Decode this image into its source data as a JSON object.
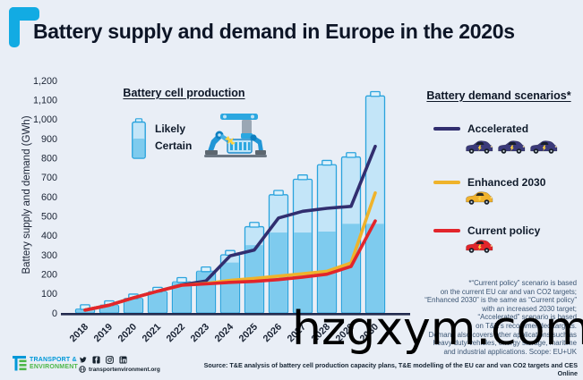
{
  "header": {
    "title": "Battery supply and demand in Europe in the 2020s"
  },
  "y_axis": {
    "title": "Battery supply and demand (GWh)",
    "ticks": [
      "0",
      "100",
      "200",
      "300",
      "400",
      "500",
      "600",
      "700",
      "800",
      "900",
      "1,000",
      "1,100",
      "1,200"
    ]
  },
  "production_legend": {
    "title": "Battery cell production",
    "likely_label": "Likely",
    "certain_label": "Certain"
  },
  "demand_legend": {
    "title": "Battery demand scenarios*",
    "items": [
      {
        "label": "Accelerated",
        "color": "#312e6f",
        "car_color": "#3b3a7a",
        "cars": 3
      },
      {
        "label": "Enhanced 2030",
        "color": "#efb32b",
        "car_color": "#f0b22d",
        "cars": 1
      },
      {
        "label": "Current policy",
        "color": "#e2252b",
        "car_color": "#e2252b",
        "cars": 1
      }
    ]
  },
  "footnote": {
    "lines": [
      "*“Current policy” scenario is based",
      "on the current EU car and van CO2 targets;",
      "“Enhanced 2030” is the same as “Current policy”",
      "with an increased 2030 target;",
      "“Accelerated” scenario is based",
      "on T&E’s recommended targets.",
      "Demand also covers other applications such as",
      "heavy duty vehicles, energy storage, maritime",
      "and industrial applications. Scope: EU+UK"
    ]
  },
  "footer": {
    "brand_line1": "TRANSPORT &",
    "brand_line2": "ENVIRONMENT",
    "handle": "transportenvironment.org",
    "source": "Source: T&E analysis of battery cell production capacity plans, T&E modelling of the EU car and van CO2 targets and CES Online",
    "social_icons": [
      "twitter-icon",
      "facebook-icon",
      "instagram-icon",
      "linkedin-icon"
    ]
  },
  "watermark": "hzgxym.com",
  "colors": {
    "background": "#e9eef6",
    "bar_likely_fill": "#c3e5f8",
    "bar_certain_fill": "#7ecbee",
    "bar_stroke": "#2aa3dd",
    "nub_fill": "#ddf1fb",
    "axis": "#222a4e",
    "accelerated": "#312e6f",
    "enhanced": "#efb32b",
    "current": "#e2252b",
    "brand_blue": "#0098d8",
    "brand_green": "#4cb748"
  },
  "chart_data": {
    "type": "bar",
    "title": "Battery supply and demand in Europe in the 2020s",
    "ylabel": "Battery supply and demand (GWh)",
    "ylim": [
      0,
      1200
    ],
    "grid": false,
    "legend_position": "right",
    "categories": [
      2018,
      2019,
      2020,
      2021,
      2022,
      2023,
      2024,
      2025,
      2026,
      2027,
      2028,
      2029,
      2030
    ],
    "bar_series": [
      {
        "name": "Certain production",
        "values": [
          20,
          40,
          75,
          110,
          160,
          215,
          260,
          350,
          415,
          415,
          420,
          460,
          460
        ]
      },
      {
        "name": "Likely production (total)",
        "values": [
          20,
          40,
          75,
          110,
          160,
          215,
          300,
          445,
          610,
          690,
          765,
          805,
          1120
        ]
      }
    ],
    "line_series": [
      {
        "name": "Accelerated",
        "color": "#312e6f",
        "values": [
          15,
          40,
          78,
          112,
          145,
          165,
          295,
          325,
          490,
          525,
          540,
          550,
          860
        ]
      },
      {
        "name": "Enhanced 2030",
        "color": "#efb32b",
        "values": [
          15,
          40,
          78,
          112,
          143,
          152,
          168,
          178,
          190,
          202,
          215,
          258,
          620
        ]
      },
      {
        "name": "Current policy",
        "color": "#e2252b",
        "values": [
          15,
          40,
          78,
          112,
          143,
          150,
          158,
          163,
          172,
          185,
          200,
          240,
          475
        ]
      }
    ]
  }
}
